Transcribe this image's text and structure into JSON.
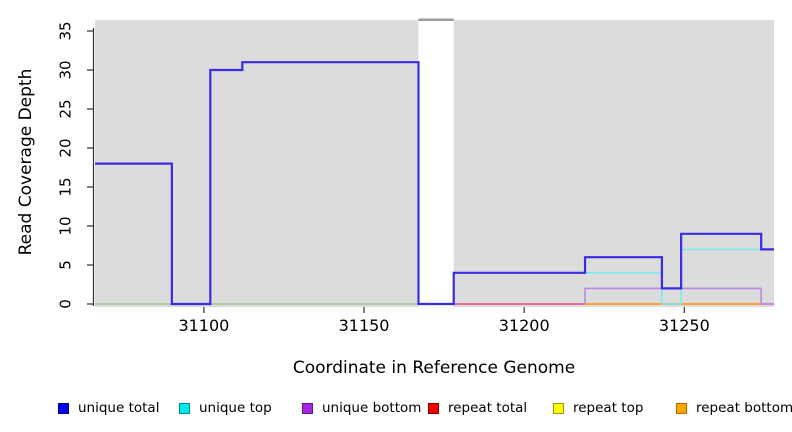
{
  "chart_data": {
    "type": "line",
    "subtype": "step-coverage",
    "title": "",
    "xlabel": "Coordinate in Reference Genome",
    "ylabel": "Read Coverage Depth",
    "x_ticks": [
      31100,
      31150,
      31200,
      31250
    ],
    "y_ticks": [
      0,
      5,
      10,
      15,
      20,
      25,
      30,
      35
    ],
    "x_range": [
      31066,
      31278
    ],
    "ylim": [
      0,
      35
    ],
    "grid": "off",
    "panel_bg": "#DCDCDC",
    "masked_region": {
      "x0": 31167,
      "x1": 31178,
      "fill": "#FFFFFF",
      "top_bar_color": "#9C9C9C"
    },
    "series": [
      {
        "name": "baseline-blend",
        "legend": false,
        "color": "#93CD90",
        "width": 1.6,
        "start_at_zero": false,
        "points": [
          [
            31066,
            0
          ],
          [
            31167,
            0
          ]
        ]
      },
      {
        "name": "repeat-total",
        "legend": true,
        "color": "#D4507E",
        "width": 1.6,
        "start_at_zero": false,
        "points": [
          [
            31178,
            0
          ],
          [
            31278,
            0
          ]
        ]
      },
      {
        "name": "repeat-bottom",
        "legend": true,
        "color": "#FFA428",
        "width": 1.8,
        "start_at_zero": false,
        "points": [
          [
            31219,
            0
          ],
          [
            31274,
            0
          ]
        ]
      },
      {
        "name": "unique-top",
        "legend": true,
        "color": "#7AEAEE",
        "width": 1.6,
        "start_at_zero": true,
        "points": [
          [
            31178,
            4
          ],
          [
            31243,
            0
          ],
          [
            31249,
            7
          ],
          [
            31278,
            7
          ]
        ]
      },
      {
        "name": "unique-bottom",
        "legend": true,
        "color": "#BA86E8",
        "width": 1.6,
        "start_at_zero": true,
        "points": [
          [
            31219,
            2
          ],
          [
            31274,
            0
          ],
          [
            31278,
            0
          ]
        ]
      },
      {
        "name": "unique-total",
        "legend": true,
        "color": "#3A2CE2",
        "width": 2.2,
        "start_at_zero": false,
        "points": [
          [
            31066,
            18
          ],
          [
            31090,
            0
          ],
          [
            31102,
            30
          ],
          [
            31112,
            31
          ],
          [
            31167,
            0
          ],
          [
            31178,
            4
          ],
          [
            31219,
            6
          ],
          [
            31243,
            2
          ],
          [
            31249,
            9
          ],
          [
            31274,
            7
          ],
          [
            31278,
            7
          ]
        ]
      }
    ],
    "legend": [
      {
        "label": "unique total",
        "color": "#0000F5",
        "border": "#00008B"
      },
      {
        "label": "unique top",
        "color": "#00E8F0",
        "border": "#008B8B"
      },
      {
        "label": "unique bottom",
        "color": "#A825E8",
        "border": "#551A8B"
      },
      {
        "label": "repeat total",
        "color": "#F50000",
        "border": "#8B0000"
      },
      {
        "label": "repeat top",
        "color": "#FFFF00",
        "border": "#9A9A00"
      },
      {
        "label": "repeat bottom",
        "color": "#FFA500",
        "border": "#B36B00"
      }
    ]
  },
  "labels": {
    "x_axis": "Coordinate in Reference Genome",
    "y_axis": "Read Coverage Depth"
  }
}
